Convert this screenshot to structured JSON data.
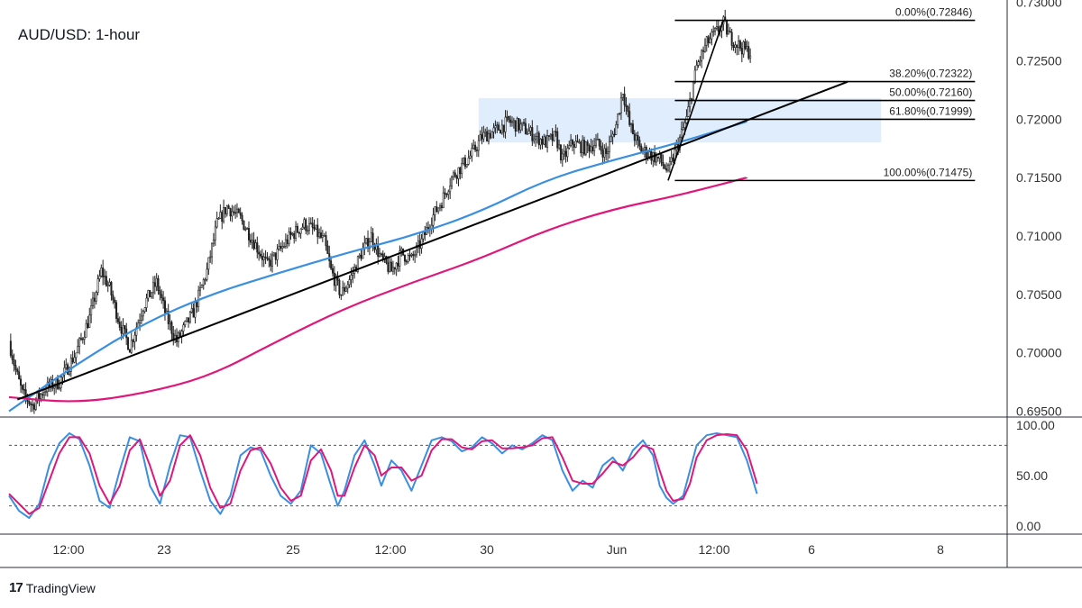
{
  "header": {
    "title": "AUD/USD: 1-hour"
  },
  "brand": {
    "logo_glyph": "17",
    "name": "TradingView"
  },
  "colors": {
    "candle": "#222222",
    "sma_fast": "#3a8fe0",
    "sma_slow": "#e0177a",
    "stoch_k": "#3a8fe0",
    "stoch_d": "#e0177a",
    "zone_fill": "#dbeafd",
    "trendline": "#000000",
    "fib": "#000000"
  },
  "chart_data": [
    {
      "type": "candlestick",
      "title": "AUD/USD: 1-hour",
      "ylim": [
        0.6945,
        0.7302
      ],
      "y_ticks": [
        "0.73000",
        "0.72500",
        "0.72000",
        "0.71500",
        "0.71000",
        "0.70500",
        "0.70000",
        "0.69500"
      ],
      "y_tick_values": [
        0.73,
        0.725,
        0.72,
        0.715,
        0.71,
        0.705,
        0.7,
        0.695
      ],
      "x_ticks": [
        "12:00",
        "23",
        "25",
        "12:00",
        "30",
        "Jun",
        "12:00",
        "6",
        "8"
      ],
      "grid": false,
      "price_path": [
        [
          0,
          0.701
        ],
        [
          4,
          0.6985
        ],
        [
          8,
          0.6965
        ],
        [
          14,
          0.6955
        ],
        [
          22,
          0.697
        ],
        [
          30,
          0.6975
        ],
        [
          40,
          0.7
        ],
        [
          48,
          0.703
        ],
        [
          55,
          0.707
        ],
        [
          60,
          0.7055
        ],
        [
          66,
          0.7025
        ],
        [
          72,
          0.7005
        ],
        [
          80,
          0.704
        ],
        [
          88,
          0.706
        ],
        [
          94,
          0.703
        ],
        [
          100,
          0.701
        ],
        [
          110,
          0.7035
        ],
        [
          118,
          0.707
        ],
        [
          124,
          0.711
        ],
        [
          130,
          0.7125
        ],
        [
          138,
          0.7115
        ],
        [
          146,
          0.7095
        ],
        [
          154,
          0.7075
        ],
        [
          160,
          0.7085
        ],
        [
          168,
          0.71
        ],
        [
          176,
          0.711
        ],
        [
          182,
          0.7105
        ],
        [
          188,
          0.7095
        ],
        [
          192,
          0.707
        ],
        [
          198,
          0.705
        ],
        [
          204,
          0.7065
        ],
        [
          210,
          0.7085
        ],
        [
          216,
          0.71
        ],
        [
          222,
          0.708
        ],
        [
          228,
          0.707
        ],
        [
          234,
          0.7085
        ],
        [
          240,
          0.708
        ],
        [
          246,
          0.7095
        ],
        [
          252,
          0.7115
        ],
        [
          258,
          0.713
        ],
        [
          264,
          0.715
        ],
        [
          270,
          0.716
        ],
        [
          276,
          0.717
        ],
        [
          282,
          0.7185
        ],
        [
          290,
          0.719
        ],
        [
          298,
          0.7198
        ],
        [
          306,
          0.7193
        ],
        [
          314,
          0.7185
        ],
        [
          320,
          0.718
        ],
        [
          326,
          0.7185
        ],
        [
          330,
          0.7165
        ],
        [
          336,
          0.718
        ],
        [
          344,
          0.7175
        ],
        [
          350,
          0.718
        ],
        [
          356,
          0.717
        ],
        [
          362,
          0.7195
        ],
        [
          366,
          0.7225
        ],
        [
          370,
          0.7195
        ],
        [
          376,
          0.7175
        ],
        [
          382,
          0.717
        ],
        [
          388,
          0.7165
        ],
        [
          393,
          0.7155
        ],
        [
          398,
          0.7175
        ],
        [
          404,
          0.72
        ],
        [
          410,
          0.7245
        ],
        [
          416,
          0.7265
        ],
        [
          422,
          0.7275
        ],
        [
          426,
          0.7282
        ],
        [
          430,
          0.727
        ],
        [
          436,
          0.7262
        ],
        [
          442,
          0.7257
        ]
      ],
      "sma_fast": {
        "name": "",
        "x_bars": [
          0,
          40,
          80,
          120,
          160,
          200,
          240,
          280,
          320,
          360,
          400,
          440
        ],
        "values": [
          0.695,
          0.699,
          0.7025,
          0.705,
          0.7068,
          0.7085,
          0.71,
          0.712,
          0.7148,
          0.7165,
          0.718,
          0.7198
        ]
      },
      "sma_slow": {
        "name": "",
        "x_bars": [
          0,
          40,
          80,
          120,
          160,
          200,
          240,
          280,
          320,
          360,
          400,
          440
        ],
        "values": [
          0.6962,
          0.6957,
          0.6965,
          0.698,
          0.701,
          0.7038,
          0.706,
          0.708,
          0.7105,
          0.7123,
          0.7135,
          0.715
        ]
      },
      "trendline": {
        "x_bars": [
          5,
          500
        ],
        "values": [
          0.696,
          0.7232
        ]
      },
      "swing_line": {
        "x_bars": [
          393,
          426
        ],
        "values": [
          0.71475,
          0.72846
        ]
      },
      "zone": {
        "x_bars": [
          280,
          520
        ],
        "y_top": 0.7218,
        "y_bottom": 0.718
      },
      "fib_levels": [
        {
          "label": "0.00%(0.72846)",
          "value": 0.72846
        },
        {
          "label": "38.20%(0.72322)",
          "value": 0.72322
        },
        {
          "label": "50.00%(0.72160)",
          "value": 0.7216
        },
        {
          "label": "61.80%(0.71999)",
          "value": 0.71999
        },
        {
          "label": "100.00%(0.71475)",
          "value": 0.71475
        }
      ],
      "fib_x_bars": [
        397,
        576
      ]
    },
    {
      "type": "line",
      "ylim": [
        -8,
        108
      ],
      "y_ticks": [
        "100.00",
        "50.00",
        "0.00"
      ],
      "y_tick_values": [
        100,
        50,
        0
      ],
      "dashed_levels": [
        80,
        20
      ],
      "k_path": [
        [
          0,
          30
        ],
        [
          6,
          15
        ],
        [
          12,
          8
        ],
        [
          18,
          22
        ],
        [
          24,
          60
        ],
        [
          30,
          82
        ],
        [
          36,
          92
        ],
        [
          42,
          86
        ],
        [
          48,
          60
        ],
        [
          54,
          25
        ],
        [
          60,
          18
        ],
        [
          66,
          55
        ],
        [
          72,
          88
        ],
        [
          78,
          84
        ],
        [
          84,
          40
        ],
        [
          90,
          22
        ],
        [
          96,
          60
        ],
        [
          102,
          90
        ],
        [
          108,
          88
        ],
        [
          114,
          55
        ],
        [
          120,
          25
        ],
        [
          126,
          12
        ],
        [
          132,
          30
        ],
        [
          138,
          70
        ],
        [
          144,
          78
        ],
        [
          150,
          75
        ],
        [
          156,
          50
        ],
        [
          162,
          30
        ],
        [
          168,
          22
        ],
        [
          174,
          35
        ],
        [
          180,
          80
        ],
        [
          186,
          72
        ],
        [
          192,
          40
        ],
        [
          196,
          20
        ],
        [
          200,
          35
        ],
        [
          206,
          70
        ],
        [
          212,
          85
        ],
        [
          218,
          60
        ],
        [
          222,
          40
        ],
        [
          228,
          65
        ],
        [
          234,
          55
        ],
        [
          240,
          35
        ],
        [
          246,
          60
        ],
        [
          252,
          85
        ],
        [
          258,
          88
        ],
        [
          264,
          84
        ],
        [
          270,
          74
        ],
        [
          276,
          78
        ],
        [
          282,
          88
        ],
        [
          288,
          82
        ],
        [
          294,
          72
        ],
        [
          300,
          80
        ],
        [
          306,
          76
        ],
        [
          312,
          82
        ],
        [
          318,
          90
        ],
        [
          324,
          85
        ],
        [
          330,
          55
        ],
        [
          336,
          35
        ],
        [
          342,
          45
        ],
        [
          348,
          38
        ],
        [
          354,
          60
        ],
        [
          360,
          68
        ],
        [
          366,
          55
        ],
        [
          372,
          75
        ],
        [
          378,
          85
        ],
        [
          384,
          70
        ],
        [
          388,
          40
        ],
        [
          392,
          28
        ],
        [
          396,
          22
        ],
        [
          402,
          30
        ],
        [
          406,
          55
        ],
        [
          410,
          80
        ],
        [
          416,
          90
        ],
        [
          422,
          92
        ],
        [
          428,
          90
        ],
        [
          434,
          88
        ],
        [
          440,
          65
        ],
        [
          446,
          32
        ]
      ],
      "d_path": [
        [
          0,
          32
        ],
        [
          6,
          22
        ],
        [
          12,
          12
        ],
        [
          18,
          18
        ],
        [
          24,
          45
        ],
        [
          30,
          72
        ],
        [
          36,
          88
        ],
        [
          42,
          88
        ],
        [
          48,
          72
        ],
        [
          54,
          40
        ],
        [
          60,
          22
        ],
        [
          66,
          40
        ],
        [
          72,
          75
        ],
        [
          78,
          86
        ],
        [
          84,
          60
        ],
        [
          90,
          30
        ],
        [
          96,
          45
        ],
        [
          102,
          80
        ],
        [
          108,
          90
        ],
        [
          114,
          70
        ],
        [
          120,
          38
        ],
        [
          126,
          18
        ],
        [
          132,
          22
        ],
        [
          138,
          55
        ],
        [
          144,
          75
        ],
        [
          150,
          78
        ],
        [
          156,
          62
        ],
        [
          162,
          38
        ],
        [
          168,
          25
        ],
        [
          174,
          30
        ],
        [
          180,
          65
        ],
        [
          186,
          76
        ],
        [
          192,
          55
        ],
        [
          196,
          30
        ],
        [
          200,
          30
        ],
        [
          206,
          58
        ],
        [
          212,
          80
        ],
        [
          218,
          70
        ],
        [
          222,
          50
        ],
        [
          228,
          58
        ],
        [
          234,
          58
        ],
        [
          240,
          45
        ],
        [
          246,
          50
        ],
        [
          252,
          75
        ],
        [
          258,
          86
        ],
        [
          264,
          86
        ],
        [
          270,
          78
        ],
        [
          276,
          76
        ],
        [
          282,
          84
        ],
        [
          288,
          85
        ],
        [
          294,
          77
        ],
        [
          300,
          77
        ],
        [
          306,
          78
        ],
        [
          312,
          80
        ],
        [
          318,
          87
        ],
        [
          324,
          88
        ],
        [
          330,
          68
        ],
        [
          336,
          45
        ],
        [
          342,
          42
        ],
        [
          348,
          42
        ],
        [
          354,
          52
        ],
        [
          360,
          64
        ],
        [
          366,
          60
        ],
        [
          372,
          68
        ],
        [
          378,
          80
        ],
        [
          384,
          76
        ],
        [
          388,
          55
        ],
        [
          392,
          35
        ],
        [
          396,
          25
        ],
        [
          402,
          27
        ],
        [
          406,
          42
        ],
        [
          410,
          68
        ],
        [
          416,
          85
        ],
        [
          422,
          90
        ],
        [
          428,
          91
        ],
        [
          434,
          90
        ],
        [
          440,
          75
        ],
        [
          446,
          42
        ]
      ]
    }
  ]
}
